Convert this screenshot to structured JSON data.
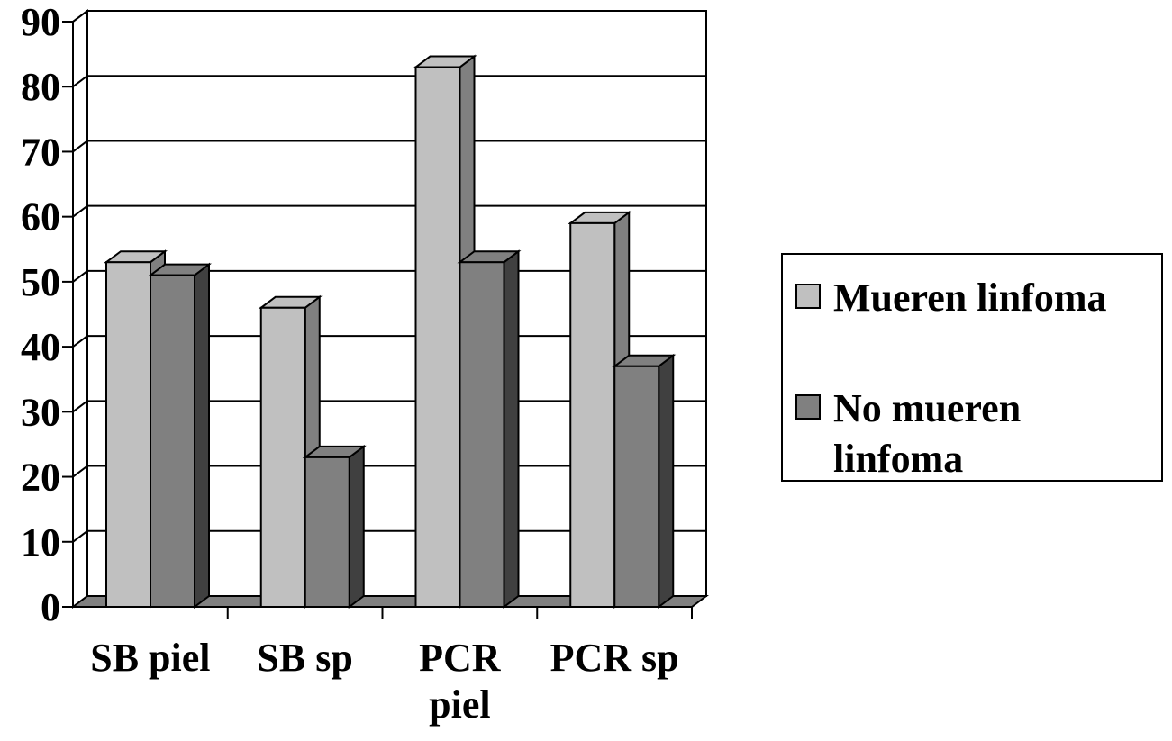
{
  "chart_data": {
    "type": "bar",
    "categories": [
      [
        "SB piel"
      ],
      [
        "SB sp"
      ],
      [
        "PCR",
        "piel"
      ],
      [
        "PCR sp"
      ]
    ],
    "series": [
      {
        "name": "Mueren linfoma",
        "values": [
          53,
          46,
          83,
          59
        ],
        "color": "#c0c0c0",
        "side_color": "#808080",
        "top_color": "#c0c0c0"
      },
      {
        "name": "No mueren linfoma",
        "values": [
          51,
          23,
          53,
          37
        ],
        "color": "#808080",
        "side_color": "#404040",
        "top_color": "#808080"
      }
    ],
    "ylim": [
      0,
      90
    ],
    "yticks": [
      "0",
      "10",
      "20",
      "30",
      "40",
      "50",
      "60",
      "70",
      "80",
      "90"
    ],
    "grid": true,
    "legend_position": "right",
    "title": "",
    "xlabel": "",
    "ylabel": ""
  },
  "legend": {
    "items": [
      {
        "lines": [
          "Mueren linfoma"
        ]
      },
      {
        "lines": [
          "No mueren",
          "linfoma"
        ]
      }
    ]
  }
}
